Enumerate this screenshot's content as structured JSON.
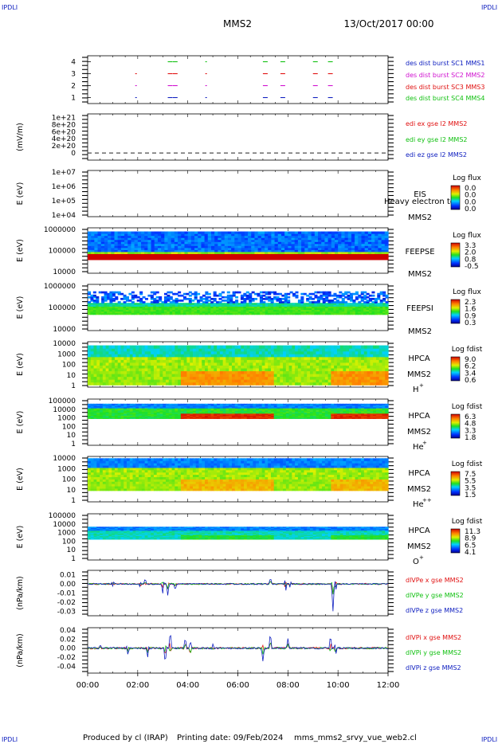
{
  "header": {
    "corner_label": "IPDLI",
    "spacecraft": "MMS2",
    "date": "13/Oct/2017 00:00"
  },
  "footer": {
    "produced_by": "Produced by cl (IRAP)",
    "printing_date": "Printing date: 09/Feb/2024",
    "script_name": "mms_mms2_srvy_vue_web2.cl"
  },
  "colors": {
    "red": "#e01010",
    "green": "#10c010",
    "blue": "#1020c0",
    "magenta": "#d010d0"
  },
  "chart_data": [
    {
      "type": "scatter",
      "panel": "burst",
      "xlim": [
        0,
        12
      ],
      "ylim": [
        0.5,
        4.5
      ],
      "yticks": [
        "1",
        "2",
        "3",
        "4"
      ],
      "series": [
        {
          "name": "des dist burst SC1 MMS1",
          "color": "#1020c0",
          "y": 1,
          "x": [
            1.9,
            3.2,
            3.4,
            4.7,
            7.0,
            7.7,
            9.0,
            9.6
          ]
        },
        {
          "name": "des dist burst SC2 MMS2",
          "color": "#d010d0",
          "y": 2,
          "x": [
            1.9,
            3.2,
            3.4,
            4.7,
            7.0,
            7.7,
            9.0,
            9.6
          ]
        },
        {
          "name": "des dist burst SC3 MMS3",
          "color": "#e01010",
          "y": 3,
          "x": [
            1.9,
            3.2,
            3.4,
            4.7,
            7.0,
            7.7,
            9.0,
            9.6
          ]
        },
        {
          "name": "des dist burst SC4 MMS4",
          "color": "#10c010",
          "y": 4,
          "x": [
            3.2,
            3.4,
            4.7,
            7.0,
            7.7,
            9.0,
            9.6
          ]
        }
      ]
    },
    {
      "type": "line",
      "panel": "edi",
      "ylabel": "(mV/m)",
      "ylim": [
        -2e+20,
        1.1e+21
      ],
      "yticks": [
        "0",
        "2e+20",
        "4e+20",
        "6e+20",
        "8e+20",
        "1e+21"
      ],
      "series": [
        {
          "name": "edi ex gse l2 MMS2",
          "color": "#e01010"
        },
        {
          "name": "edi ey gse l2 MMS2",
          "color": "#10c010"
        },
        {
          "name": "edi ez gse l2 MMS2",
          "color": "#1020c0"
        }
      ]
    },
    {
      "type": "heatmap",
      "panel": "eis",
      "ylabel": "E (eV)",
      "yscale": "log",
      "yticks": [
        "1e+04",
        "1e+05",
        "1e+06",
        "1e+07"
      ],
      "instrument": "EIS",
      "sc": "MMS2",
      "overlay_text": "Heavy electron to",
      "colorbar_title": "Log flux",
      "colorbar_ticks": [
        "0.0",
        "0.0",
        "0.0",
        "0.0"
      ]
    },
    {
      "type": "heatmap",
      "panel": "feepse",
      "ylabel": "E (eV)",
      "yscale": "log",
      "yticks": [
        "10000",
        "100000",
        "1000000"
      ],
      "instrument": "FEEPSE",
      "sc": "MMS2",
      "colorbar_title": "Log flux",
      "colorbar_ticks": [
        "3.3",
        "2.0",
        "0.8",
        "-0.5"
      ]
    },
    {
      "type": "heatmap",
      "panel": "feepsi",
      "ylabel": "E (eV)",
      "yscale": "log",
      "yticks": [
        "10000",
        "100000",
        "1000000"
      ],
      "instrument": "FEEPSI",
      "sc": "MMS2",
      "colorbar_title": "Log flux",
      "colorbar_ticks": [
        "2.3",
        "1.6",
        "0.9",
        "0.3"
      ]
    },
    {
      "type": "heatmap",
      "panel": "hpca_h",
      "ylabel": "E (eV)",
      "yscale": "log",
      "yticks": [
        "1",
        "10",
        "100",
        "1000",
        "10000"
      ],
      "instrument": "HPCA",
      "sc": "MMS2",
      "species": "H",
      "species_sup": "+",
      "colorbar_title": "Log fdist",
      "colorbar_ticks": [
        "9.0",
        "6.2",
        "3.4",
        "0.6"
      ]
    },
    {
      "type": "heatmap",
      "panel": "hpca_he",
      "ylabel": "E (eV)",
      "yscale": "log",
      "yticks": [
        "1",
        "10",
        "100",
        "1000",
        "10000",
        "100000"
      ],
      "instrument": "HPCA",
      "sc": "MMS2",
      "species": "He",
      "species_sup": "+",
      "colorbar_title": "Log fdist",
      "colorbar_ticks": [
        "6.3",
        "4.8",
        "3.3",
        "1.8"
      ]
    },
    {
      "type": "heatmap",
      "panel": "hpca_he2",
      "ylabel": "E (eV)",
      "yscale": "log",
      "yticks": [
        "1",
        "10",
        "100",
        "1000",
        "10000"
      ],
      "instrument": "HPCA",
      "sc": "MMS2",
      "species": "He",
      "species_sup": "++",
      "colorbar_title": "Log fdist",
      "colorbar_ticks": [
        "7.5",
        "5.5",
        "3.5",
        "1.5"
      ]
    },
    {
      "type": "heatmap",
      "panel": "hpca_o",
      "ylabel": "E (eV)",
      "yscale": "log",
      "yticks": [
        "1",
        "10",
        "100",
        "1000",
        "10000",
        "100000"
      ],
      "instrument": "HPCA",
      "sc": "MMS2",
      "species": "O",
      "species_sup": "+",
      "colorbar_title": "Log fdist",
      "colorbar_ticks": [
        "11.3",
        "8.9",
        "6.5",
        "4.1"
      ]
    },
    {
      "type": "line",
      "panel": "dvpe",
      "ylabel": "(nPa/km)",
      "ylim": [
        -0.035,
        0.015
      ],
      "yticks": [
        "-0.03",
        "-0.02",
        "-0.01",
        "0.00",
        "0.01"
      ],
      "series": [
        {
          "name": "dlVPe x gse MMS2",
          "color": "#e01010"
        },
        {
          "name": "dlVPe y gse MMS2",
          "color": "#10c010"
        },
        {
          "name": "dlVPe z gse MMS2",
          "color": "#1020c0"
        }
      ]
    },
    {
      "type": "line",
      "panel": "dvpi",
      "ylabel": "(nPa/km)",
      "ylim": [
        -0.055,
        0.045
      ],
      "yticks": [
        "-0.04",
        "-0.02",
        "0.00",
        "0.02",
        "0.04"
      ],
      "series": [
        {
          "name": "dlVPi x gse MMS2",
          "color": "#e01010"
        },
        {
          "name": "dlVPi y gse MMS2",
          "color": "#10c010"
        },
        {
          "name": "dlVPi z gse MMS2",
          "color": "#1020c0"
        }
      ]
    }
  ],
  "xaxis": {
    "ticks": [
      "00:00",
      "02:00",
      "04:00",
      "06:00",
      "08:00",
      "10:00",
      "12:00"
    ],
    "xlim": [
      0,
      12
    ]
  }
}
